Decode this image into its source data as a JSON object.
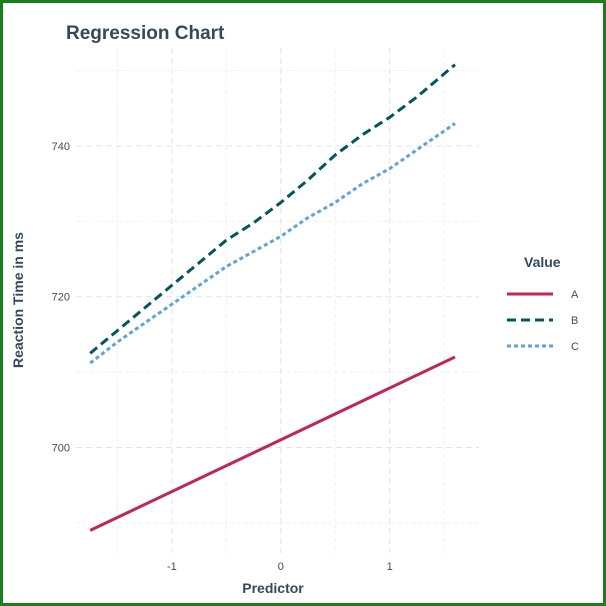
{
  "chart_data": {
    "type": "line",
    "title": "Regression Chart",
    "xlabel": "Predictor",
    "ylabel": "Reaction Time in ms",
    "xlim": [
      -1.88,
      1.82
    ],
    "ylim": [
      686,
      753
    ],
    "xticks": [
      -1,
      0,
      1
    ],
    "yticks": [
      700,
      720,
      740
    ],
    "grid": true,
    "legend": {
      "title": "Value",
      "position": "right"
    },
    "series": [
      {
        "name": "A",
        "color": "#c2255c",
        "dash": "solid",
        "x": [
          -1.75,
          1.6
        ],
        "y": [
          689,
          712
        ]
      },
      {
        "name": "B",
        "color": "#00585a",
        "dash": "dashed",
        "x": [
          -1.75,
          -1.5,
          -1.25,
          -1.0,
          -0.75,
          -0.5,
          -0.25,
          0.0,
          0.25,
          0.5,
          0.75,
          1.0,
          1.25,
          1.6
        ],
        "y": [
          712.5,
          715.5,
          718.5,
          721.5,
          724.5,
          727.5,
          729.8,
          732.5,
          735.5,
          738.8,
          741.5,
          743.8,
          746.5,
          750.8
        ]
      },
      {
        "name": "C",
        "color": "#5aa5dc",
        "dash": "dotted",
        "x": [
          -1.75,
          -1.5,
          -1.25,
          -1.0,
          -0.75,
          -0.5,
          -0.25,
          0.0,
          0.25,
          0.5,
          0.75,
          1.0,
          1.25,
          1.6
        ],
        "y": [
          711.2,
          714.0,
          716.5,
          719.0,
          721.5,
          724.0,
          726.0,
          728.0,
          730.5,
          732.5,
          735.0,
          737.0,
          739.5,
          743.0
        ]
      }
    ]
  }
}
